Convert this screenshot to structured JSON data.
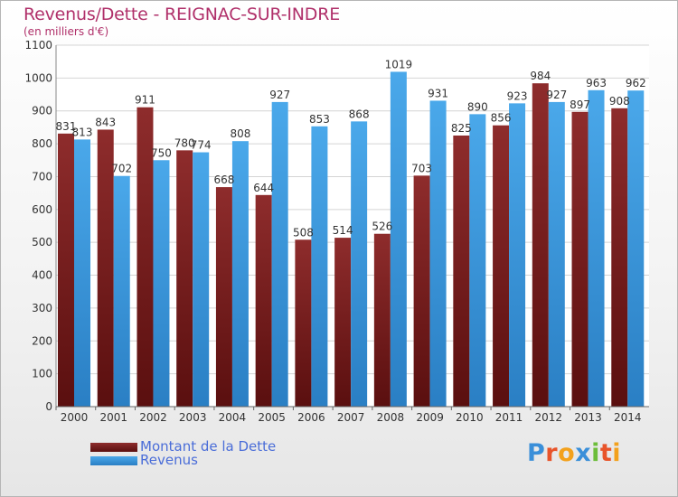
{
  "title": "Revenus/Dette - REIGNAC-SUR-INDRE",
  "subtitle": "(en milliers d'€)",
  "logo": {
    "text": "Proxiti"
  },
  "colors": {
    "dette": "#7a1f1f",
    "revenus": "#3a9be0",
    "title": "#b0306a",
    "legend_text": "#4a6dd8"
  },
  "legend": [
    {
      "label": "Montant de la Dette",
      "color": "#7a1f1f"
    },
    {
      "label": "Revenus",
      "color": "#3a9be0"
    }
  ],
  "chart_data": {
    "type": "bar",
    "categories": [
      "2000",
      "2001",
      "2002",
      "2003",
      "2004",
      "2005",
      "2006",
      "2007",
      "2008",
      "2009",
      "2010",
      "2011",
      "2012",
      "2013",
      "2014"
    ],
    "series": [
      {
        "name": "Montant de la Dette",
        "values": [
          831,
          843,
          911,
          780,
          668,
          644,
          508,
          514,
          526,
          703,
          825,
          856,
          984,
          897,
          908
        ]
      },
      {
        "name": "Revenus",
        "values": [
          813,
          702,
          750,
          774,
          808,
          927,
          853,
          868,
          1019,
          931,
          890,
          923,
          927,
          963,
          962
        ]
      }
    ],
    "ylim": [
      0,
      1100
    ],
    "yticks": [
      0,
      100,
      200,
      300,
      400,
      500,
      600,
      700,
      800,
      900,
      1000,
      1100
    ],
    "grid": true,
    "legend_position": "bottom-left"
  }
}
